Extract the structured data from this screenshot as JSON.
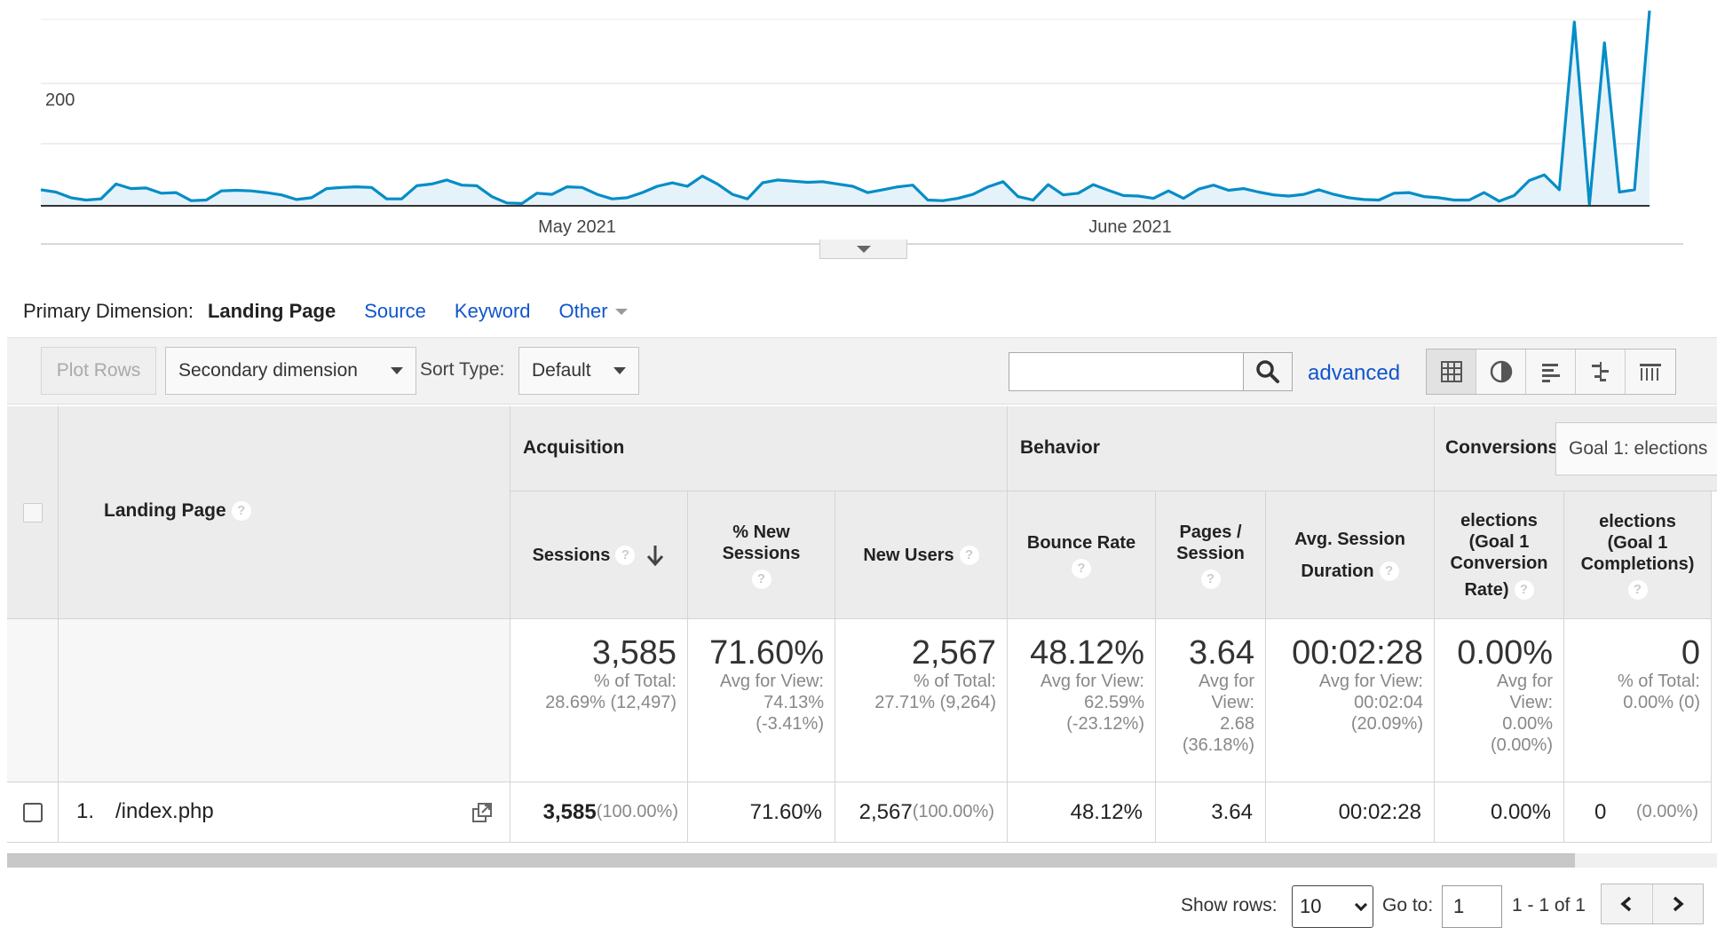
{
  "chart_data": {
    "type": "area",
    "series": [
      {
        "color": "#058dc7",
        "values": [
          28,
          24,
          14,
          10,
          12,
          38,
          30,
          31,
          22,
          23,
          9,
          10,
          26,
          27,
          26,
          23,
          19,
          11,
          14,
          30,
          32,
          33,
          32,
          12,
          12,
          35,
          38,
          45,
          36,
          35,
          16,
          5,
          4,
          22,
          20,
          33,
          32,
          20,
          12,
          14,
          23,
          34,
          40,
          34,
          52,
          38,
          20,
          12,
          40,
          45,
          43,
          41,
          42,
          38,
          34,
          23,
          28,
          33,
          36,
          10,
          9,
          13,
          20,
          33,
          42,
          16,
          10,
          37,
          19,
          22,
          37,
          27,
          18,
          17,
          13,
          26,
          13,
          29,
          36,
          27,
          30,
          24,
          19,
          17,
          20,
          28,
          20,
          14,
          11,
          10,
          22,
          23,
          16,
          14,
          10,
          10,
          23,
          8,
          18,
          44,
          54,
          28,
          320,
          2,
          284,
          24,
          28,
          340
        ]
      }
    ],
    "x_ticks": [
      "May 2021",
      "June 2021"
    ],
    "y_ticks": [
      "200"
    ],
    "ylim": [
      0,
      340
    ],
    "grid": true
  },
  "primary_dimension": {
    "label": "Primary Dimension:",
    "active": "Landing Page",
    "options": [
      "Source",
      "Keyword"
    ],
    "other": "Other"
  },
  "toolbar": {
    "plot_rows": "Plot Rows",
    "secondary_dimension": "Secondary dimension",
    "sort_type_label": "Sort Type:",
    "sort_type_value": "Default",
    "search_value": "",
    "advanced": "advanced"
  },
  "table": {
    "landing_page_header": "Landing Page",
    "groups": {
      "acquisition": "Acquisition",
      "behavior": "Behavior",
      "conversions": "Conversions"
    },
    "goal_select": "Goal 1: elections",
    "headers": {
      "sessions": "Sessions",
      "new_sessions_1": "% New",
      "new_sessions_2": "Sessions",
      "new_users": "New Users",
      "bounce_rate": "Bounce Rate",
      "pages_1": "Pages /",
      "pages_2": "Session",
      "avg_dur_1": "Avg. Session",
      "avg_dur_2": "Duration",
      "conv_rate_1": "elections",
      "conv_rate_2": "(Goal 1",
      "conv_rate_3": "Conversion",
      "conv_rate_4": "Rate)",
      "completions_1": "elections",
      "completions_2": "(Goal 1",
      "completions_3": "Completions)"
    },
    "help_glyph": "?",
    "totals": {
      "sessions": {
        "value": "3,585",
        "l1": "% of Total:",
        "l2": "28.69% (12,497)"
      },
      "new_sessions": {
        "value": "71.60%",
        "l1": "Avg for View:",
        "l2": "74.13%",
        "l3": "(-3.41%)"
      },
      "new_users": {
        "value": "2,567",
        "l1": "% of Total:",
        "l2": "27.71% (9,264)"
      },
      "bounce_rate": {
        "value": "48.12%",
        "l1": "Avg for View:",
        "l2": "62.59%",
        "l3": "(-23.12%)"
      },
      "pages": {
        "value": "3.64",
        "l1": "Avg for",
        "l2": "View:",
        "l3": "2.68",
        "l4": "(36.18%)"
      },
      "avg_dur": {
        "value": "00:02:28",
        "l1": "Avg for View:",
        "l2": "00:02:04",
        "l3": "(20.09%)"
      },
      "conv_rate": {
        "value": "0.00%",
        "l1": "Avg for",
        "l2": "View:",
        "l3": "0.00%",
        "l4": "(0.00%)"
      },
      "completions": {
        "value": "0",
        "l1": "% of Total:",
        "l2": "0.00% (0)"
      }
    },
    "rows": [
      {
        "index": "1.",
        "page": "/index.php",
        "sessions": "3,585",
        "sessions_pct": "(100.00%)",
        "new_sessions": "71.60%",
        "new_users": "2,567",
        "new_users_pct": "(100.00%)",
        "bounce_rate": "48.12%",
        "pages": "3.64",
        "avg_dur": "00:02:28",
        "conv_rate": "0.00%",
        "completions": "0",
        "completions_pct": "(0.00%)"
      }
    ]
  },
  "pagination": {
    "show_rows_label": "Show rows:",
    "show_rows_value": "10",
    "go_to_label": "Go to:",
    "go_to_value": "1",
    "range": "1 - 1 of 1"
  },
  "colors": {
    "link": "#1155cc",
    "series": "#058dc7"
  }
}
